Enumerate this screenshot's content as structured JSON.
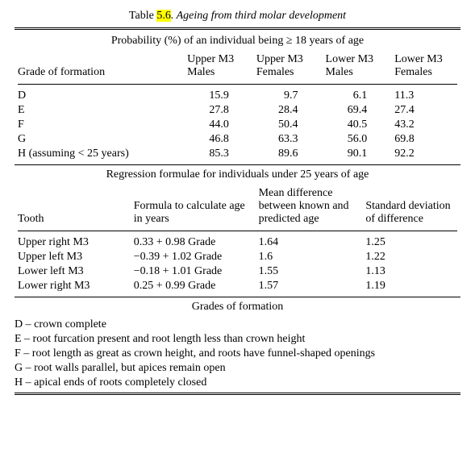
{
  "caption": {
    "prefix": "Table ",
    "num": "5.6",
    "rest": ". Ageing from third molar development"
  },
  "table1": {
    "super": "Probability (%) of an individual being ≥ 18 years of age",
    "rowhead": "Grade of formation",
    "cols": [
      "Upper M3 Males",
      "Upper M3 Females",
      "Lower M3 Males",
      "Lower M3 Females"
    ],
    "rows": [
      {
        "g": "D",
        "v": [
          "15.9",
          "9.7",
          "6.1",
          "11.3"
        ]
      },
      {
        "g": "E",
        "v": [
          "27.8",
          "28.4",
          "69.4",
          "27.4"
        ]
      },
      {
        "g": "F",
        "v": [
          "44.0",
          "50.4",
          "40.5",
          "43.2"
        ]
      },
      {
        "g": "G",
        "v": [
          "46.8",
          "63.3",
          "56.0",
          "69.8"
        ]
      },
      {
        "g": "H (assuming < 25 years)",
        "v": [
          "85.3",
          "89.6",
          "90.1",
          "92.2"
        ]
      }
    ]
  },
  "table2": {
    "super": "Regression formulae for individuals under 25 years of age",
    "rowhead": "Tooth",
    "cols": [
      "Formula to calculate age in years",
      "Mean difference between known and predicted age",
      "Standard deviation of difference"
    ],
    "rows": [
      {
        "t": "Upper right M3",
        "f": "0.33 + 0.98 Grade",
        "m": "1.64",
        "s": "1.25"
      },
      {
        "t": "Upper left M3",
        "f": "−0.39 + 1.02 Grade",
        "m": "1.6",
        "s": "1.22"
      },
      {
        "t": "Lower left M3",
        "f": "−0.18 + 1.01 Grade",
        "m": "1.55",
        "s": "1.13"
      },
      {
        "t": "Lower right M3",
        "f": "0.25 + 0.99 Grade",
        "m": "1.57",
        "s": "1.19"
      }
    ]
  },
  "grades": {
    "title": "Grades of formation",
    "items": [
      "D – crown complete",
      "E – root furcation present and root length less than crown height",
      "F – root length as great as crown height, and roots have funnel-shaped openings",
      "G – root walls parallel, but apices remain open",
      "H – apical ends of roots completely closed"
    ]
  }
}
